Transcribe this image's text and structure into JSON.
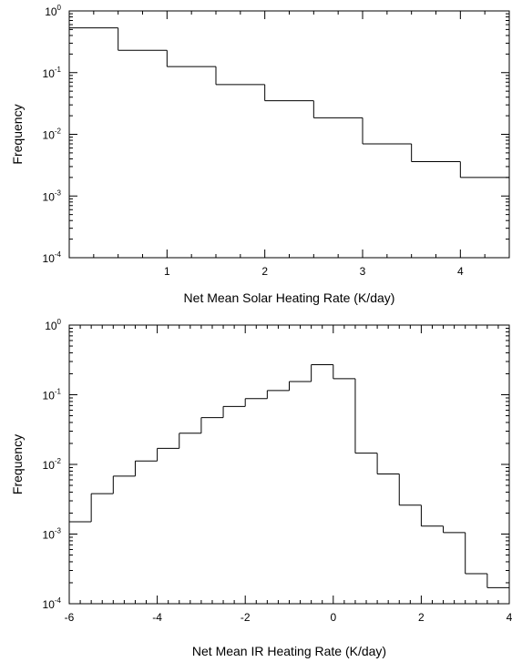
{
  "chart_data": [
    {
      "type": "histogram-step",
      "xlabel": "Net Mean Solar Heating Rate (K/day)",
      "ylabel": "Frequency",
      "xlim": [
        0,
        4.5
      ],
      "ylim": [
        0.0001,
        1
      ],
      "yscale": "log",
      "grid": false,
      "x_ticks": [
        1,
        2,
        3,
        4
      ],
      "y_ticks": [
        {
          "base": "10",
          "exp": "0"
        },
        {
          "base": "10",
          "exp": "-1"
        },
        {
          "base": "10",
          "exp": "-2"
        },
        {
          "base": "10",
          "exp": "-3"
        },
        {
          "base": "10",
          "exp": "-4"
        }
      ],
      "bin_edges": [
        0,
        0.5,
        1.0,
        1.5,
        2.0,
        2.5,
        3.0,
        3.5,
        4.0,
        4.5
      ],
      "values": [
        0.53,
        0.23,
        0.125,
        0.064,
        0.035,
        0.0185,
        0.007,
        0.0036,
        0.002
      ]
    },
    {
      "type": "histogram-step",
      "xlabel": "Net Mean IR Heating Rate (K/day)",
      "ylabel": "Frequency",
      "xlim": [
        -6,
        4
      ],
      "ylim": [
        0.0001,
        1
      ],
      "yscale": "log",
      "grid": false,
      "x_ticks": [
        -6,
        -4,
        -2,
        0,
        2,
        4
      ],
      "y_ticks": [
        {
          "base": "10",
          "exp": "0"
        },
        {
          "base": "10",
          "exp": "-1"
        },
        {
          "base": "10",
          "exp": "-2"
        },
        {
          "base": "10",
          "exp": "-3"
        },
        {
          "base": "10",
          "exp": "-4"
        }
      ],
      "bin_edges": [
        -6.0,
        -5.5,
        -5.0,
        -4.5,
        -4.0,
        -3.5,
        -3.0,
        -2.5,
        -2.0,
        -1.5,
        -1.0,
        -0.5,
        0.0,
        0.5,
        1.0,
        1.5,
        2.0,
        2.5,
        3.0,
        3.5,
        4.0
      ],
      "values": [
        0.0015,
        0.0038,
        0.0068,
        0.0112,
        0.017,
        0.028,
        0.047,
        0.068,
        0.088,
        0.115,
        0.155,
        0.27,
        0.17,
        0.0145,
        0.0073,
        0.0026,
        0.0013,
        0.00105,
        0.00027,
        0.00017
      ]
    }
  ]
}
